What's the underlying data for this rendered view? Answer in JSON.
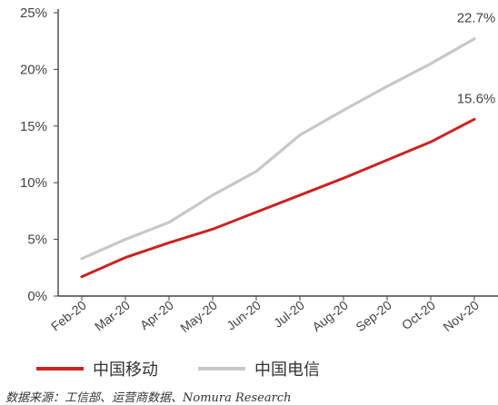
{
  "chart_data": {
    "type": "line",
    "categories": [
      "Feb-20",
      "Mar-20",
      "Apr-20",
      "May-20",
      "Jun-20",
      "Jul-20",
      "Aug-20",
      "Sep-20",
      "Oct-20",
      "Nov-20"
    ],
    "series": [
      {
        "name": "中国移动",
        "color": "#cc2222",
        "values": [
          1.7,
          3.4,
          4.7,
          5.9,
          7.4,
          8.9,
          10.4,
          12.0,
          13.6,
          15.6
        ]
      },
      {
        "name": "中国电信",
        "color": "#c8c8c8",
        "values": [
          3.3,
          5.0,
          6.5,
          8.9,
          11.0,
          14.2,
          16.4,
          18.5,
          20.5,
          22.7
        ]
      }
    ],
    "end_labels": [
      "15.6%",
      "22.7%"
    ],
    "yticks": [
      "0%",
      "5%",
      "10%",
      "15%",
      "20%",
      "25%"
    ],
    "ylim": [
      0,
      25
    ],
    "y_format": "percent",
    "grid": false,
    "legend_position": "bottom-left",
    "title": "",
    "xlabel": "",
    "ylabel": ""
  },
  "source_note": "数据来源：工信部、运营商数据、Nomura Research"
}
